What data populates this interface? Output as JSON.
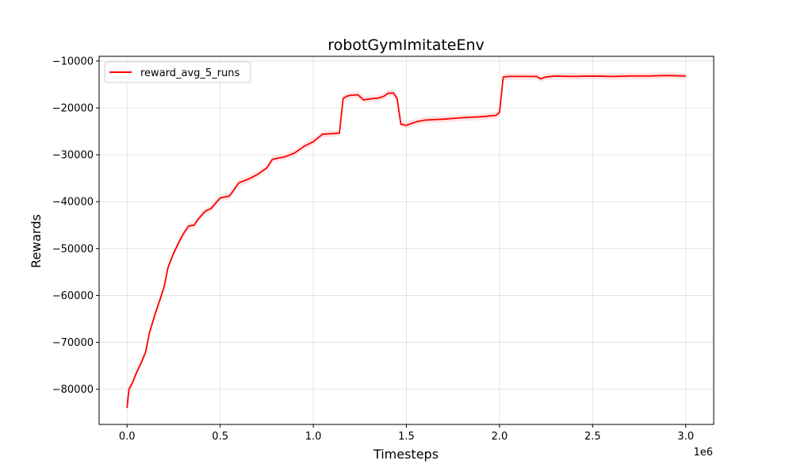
{
  "chart_data": {
    "type": "line",
    "title": "robotGymImitateEnv",
    "xlabel": "Timesteps",
    "ylabel": "Rewards",
    "x_offset_label": "1e6",
    "xlim": [
      -0.15,
      3.15
    ],
    "ylim": [
      -87500,
      -9000
    ],
    "x_ticks": [
      0.0,
      0.5,
      1.0,
      1.5,
      2.0,
      2.5,
      3.0
    ],
    "x_tick_labels": [
      "0.0",
      "0.5",
      "1.0",
      "1.5",
      "2.0",
      "2.5",
      "3.0"
    ],
    "y_ticks": [
      -80000,
      -70000,
      -60000,
      -50000,
      -40000,
      -30000,
      -20000,
      -10000
    ],
    "y_tick_labels": [
      "−80000",
      "−70000",
      "−60000",
      "−50000",
      "−40000",
      "−30000",
      "−20000",
      "−10000"
    ],
    "grid": true,
    "legend_position": "top-left",
    "series": [
      {
        "name": "reward_avg_5_runs",
        "color": "#ff0000",
        "band_color": "#ffcccc",
        "band_halfwidth": 700,
        "x": [
          0.0,
          0.01,
          0.03,
          0.05,
          0.08,
          0.1,
          0.12,
          0.15,
          0.18,
          0.2,
          0.22,
          0.25,
          0.28,
          0.3,
          0.33,
          0.36,
          0.38,
          0.42,
          0.45,
          0.5,
          0.55,
          0.6,
          0.65,
          0.7,
          0.75,
          0.78,
          0.8,
          0.85,
          0.9,
          0.95,
          1.0,
          1.05,
          1.1,
          1.14,
          1.16,
          1.18,
          1.2,
          1.24,
          1.27,
          1.3,
          1.35,
          1.38,
          1.4,
          1.43,
          1.45,
          1.47,
          1.5,
          1.55,
          1.6,
          1.7,
          1.8,
          1.9,
          1.98,
          2.0,
          2.02,
          2.05,
          2.1,
          2.2,
          2.22,
          2.25,
          2.3,
          2.4,
          2.5,
          2.6,
          2.7,
          2.8,
          2.9,
          3.0
        ],
        "y": [
          -84000,
          -80000,
          -78500,
          -76500,
          -74000,
          -72000,
          -68000,
          -64000,
          -60500,
          -58000,
          -54000,
          -51000,
          -48500,
          -47000,
          -45200,
          -45000,
          -43800,
          -42000,
          -41500,
          -39200,
          -38800,
          -36000,
          -35200,
          -34200,
          -32800,
          -31000,
          -30800,
          -30400,
          -29600,
          -28200,
          -27200,
          -25600,
          -25500,
          -25400,
          -18000,
          -17500,
          -17300,
          -17200,
          -18300,
          -18100,
          -17900,
          -17500,
          -16900,
          -16800,
          -18000,
          -23500,
          -23700,
          -23000,
          -22600,
          -22400,
          -22100,
          -21900,
          -21600,
          -21000,
          -13400,
          -13300,
          -13300,
          -13300,
          -13800,
          -13400,
          -13200,
          -13300,
          -13200,
          -13300,
          -13200,
          -13200,
          -13100,
          -13200
        ]
      }
    ]
  }
}
